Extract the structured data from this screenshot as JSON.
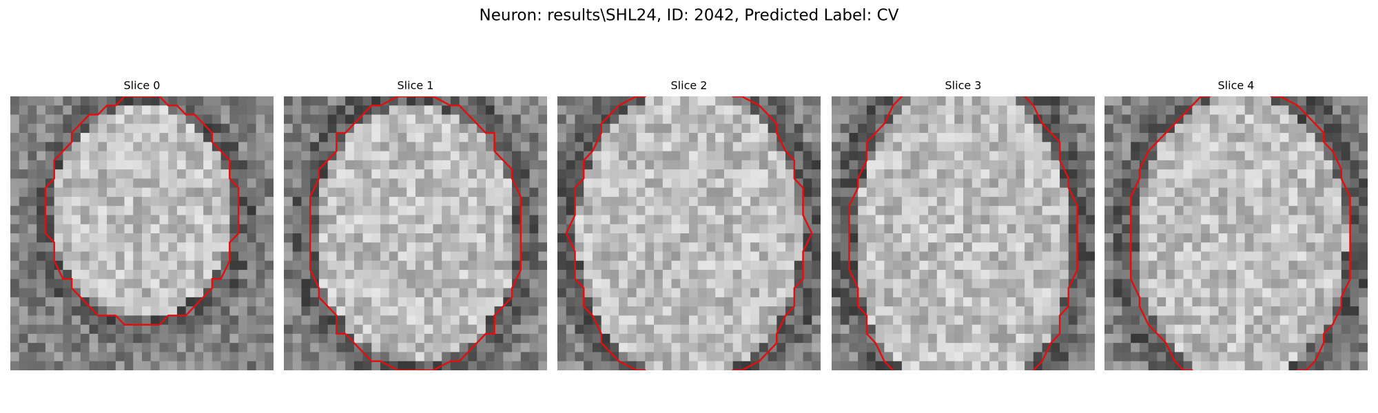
{
  "title": "Neuron: results\\SHL24, ID: 2042, Predicted Label: CV",
  "panels": [
    {
      "title": "Slice 0"
    },
    {
      "title": "Slice 1"
    },
    {
      "title": "Slice 2"
    },
    {
      "title": "Slice 3"
    },
    {
      "title": "Slice 4"
    }
  ]
}
